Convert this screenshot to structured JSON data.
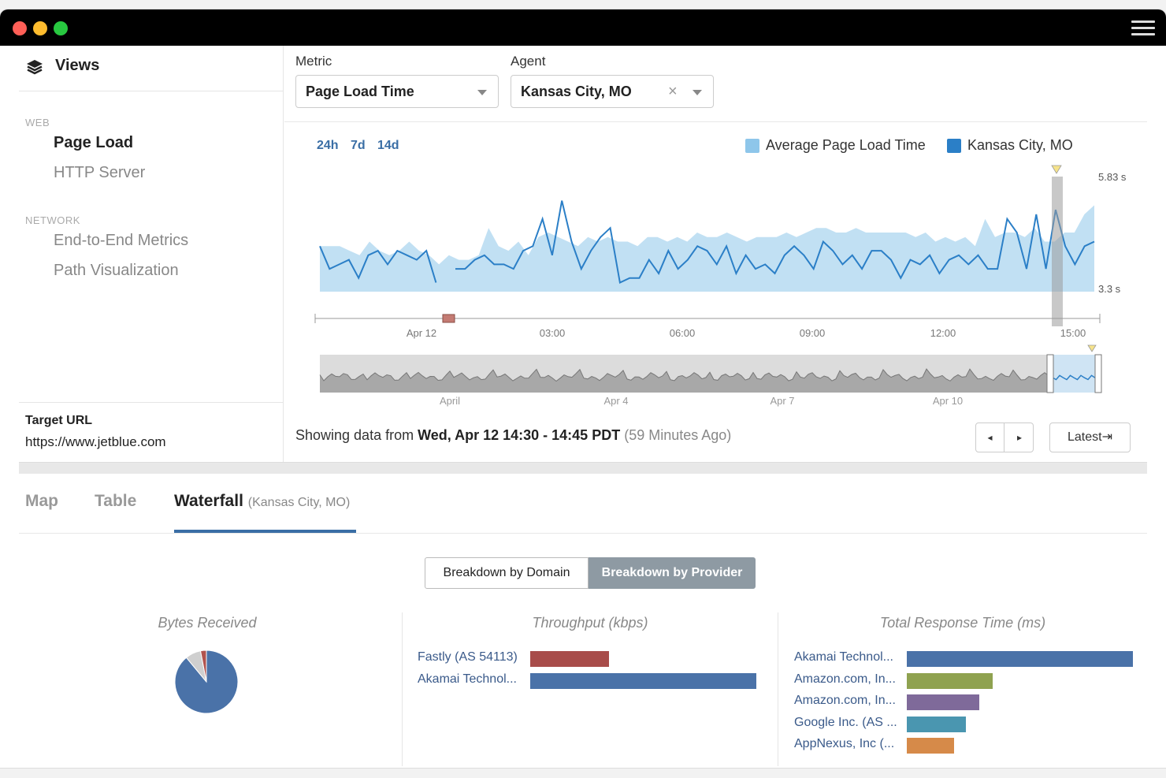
{
  "window": {
    "dot_colors": [
      "#ff5f57",
      "#febc2e",
      "#28c840"
    ]
  },
  "sidebar": {
    "title": "Views",
    "web_label": "WEB",
    "web_items": [
      {
        "label": "Page Load",
        "active": true
      },
      {
        "label": "HTTP Server",
        "active": false
      }
    ],
    "network_label": "NETWORK",
    "network_items": [
      {
        "label": "End-to-End Metrics"
      },
      {
        "label": "Path Visualization"
      }
    ],
    "target_label": "Target URL",
    "target_url": "https://www.jetblue.com"
  },
  "filters": {
    "metric_label": "Metric",
    "metric_value": "Page Load Time",
    "agent_label": "Agent",
    "agent_value": "Kansas City, MO"
  },
  "time_ranges": [
    "24h",
    "7d",
    "14d"
  ],
  "legend": {
    "series_1": "Average Page Load Time",
    "series_2": "Kansas City, MO",
    "color_1": "#8ec6ea",
    "color_2": "#2b7fc7"
  },
  "chart_data": {
    "type": "line",
    "y_max_label": "5.83 s",
    "y_min_label": "3.3 s",
    "ylim": [
      3.3,
      5.83
    ],
    "x_ticks": [
      "Apr 12",
      "03:00",
      "06:00",
      "09:00",
      "12:00",
      "15:00"
    ],
    "series": [
      {
        "name": "Average Page Load Time",
        "kind": "area",
        "values": [
          4.3,
          4.3,
          4.3,
          4.2,
          4.1,
          4.4,
          4.2,
          4.1,
          4.2,
          4.4,
          4.2,
          4.1,
          3.9,
          4.1,
          4.0,
          4.0,
          4.1,
          4.7,
          4.3,
          4.2,
          4.4,
          4.1,
          4.5,
          4.6,
          4.5,
          4.4,
          4.3,
          4.5,
          4.4,
          4.5,
          4.4,
          4.4,
          4.3,
          4.5,
          4.5,
          4.4,
          4.5,
          4.4,
          4.6,
          4.5,
          4.5,
          4.6,
          4.5,
          4.4,
          4.5,
          4.5,
          4.5,
          4.6,
          4.5,
          4.6,
          4.7,
          4.7,
          4.6,
          4.6,
          4.7,
          4.6,
          4.6,
          4.6,
          4.6,
          4.6,
          4.5,
          4.6,
          4.4,
          4.5,
          4.4,
          4.5,
          4.3,
          4.9,
          4.5,
          4.6,
          4.6,
          4.5,
          4.7,
          4.4,
          4.4,
          4.6,
          4.6,
          5.0,
          5.2
        ]
      },
      {
        "name": "Kansas City, MO",
        "kind": "line",
        "values": [
          4.3,
          3.8,
          3.9,
          4.0,
          3.6,
          4.1,
          4.2,
          3.9,
          4.2,
          4.1,
          4.0,
          4.2,
          3.5,
          null,
          3.8,
          3.8,
          4.0,
          4.1,
          3.9,
          3.9,
          3.8,
          4.2,
          4.3,
          4.9,
          4.1,
          5.3,
          4.4,
          3.8,
          4.2,
          4.5,
          4.7,
          3.5,
          3.6,
          3.6,
          4.0,
          3.7,
          4.2,
          3.8,
          4.0,
          4.3,
          4.2,
          3.9,
          4.3,
          3.7,
          4.1,
          3.8,
          3.9,
          3.7,
          4.1,
          4.3,
          4.1,
          3.8,
          4.4,
          4.2,
          3.9,
          4.1,
          3.8,
          4.2,
          4.2,
          4.0,
          3.6,
          4.0,
          3.9,
          4.1,
          3.7,
          4.0,
          4.1,
          3.9,
          4.1,
          3.8,
          3.8,
          4.9,
          4.6,
          3.8,
          5.0,
          3.8,
          5.1,
          4.3,
          3.9,
          4.3,
          4.4
        ]
      }
    ],
    "overview_ticks": [
      "April",
      "Apr 4",
      "Apr 7",
      "Apr 10"
    ]
  },
  "status": {
    "prefix": "Showing data from ",
    "range": "Wed, Apr 12 14:30 - 14:45 PDT",
    "ago": " (59 Minutes Ago)",
    "prev_icon": "◂",
    "next_icon": "▸",
    "latest_label": "Latest⇥"
  },
  "tabs": {
    "map": "Map",
    "table": "Table",
    "waterfall": "Waterfall",
    "waterfall_sub": "(Kansas City, MO)"
  },
  "breakdown": {
    "domain_label": "Breakdown by Domain",
    "provider_label": "Breakdown by Provider"
  },
  "panels": {
    "bytes_title": "Bytes Received",
    "bytes_pie": [
      {
        "label": "slice-1",
        "value": 0.89,
        "color": "#4a72a8"
      },
      {
        "label": "slice-2",
        "value": 0.08,
        "color": "#cfcfcf"
      },
      {
        "label": "slice-3",
        "value": 0.03,
        "color": "#b2534e"
      }
    ],
    "throughput_title": "Throughput (kbps)",
    "throughput_bars": [
      {
        "label": "Fastly (AS 54113)",
        "value": 0.35,
        "color": "#a84c4a"
      },
      {
        "label": "Akamai Technol...",
        "value": 1.0,
        "color": "#4a72a8"
      }
    ],
    "response_title": "Total Response Time (ms)",
    "response_bars": [
      {
        "label": "Akamai Technol...",
        "value": 1.0,
        "color": "#4a72a8"
      },
      {
        "label": "Amazon.com, In...",
        "value": 0.38,
        "color": "#8fa250"
      },
      {
        "label": "Amazon.com, In...",
        "value": 0.32,
        "color": "#7f6a9a"
      },
      {
        "label": "Google Inc. (AS ...",
        "value": 0.26,
        "color": "#4a96b0"
      },
      {
        "label": "AppNexus, Inc (...",
        "value": 0.21,
        "color": "#d68a49"
      }
    ]
  }
}
